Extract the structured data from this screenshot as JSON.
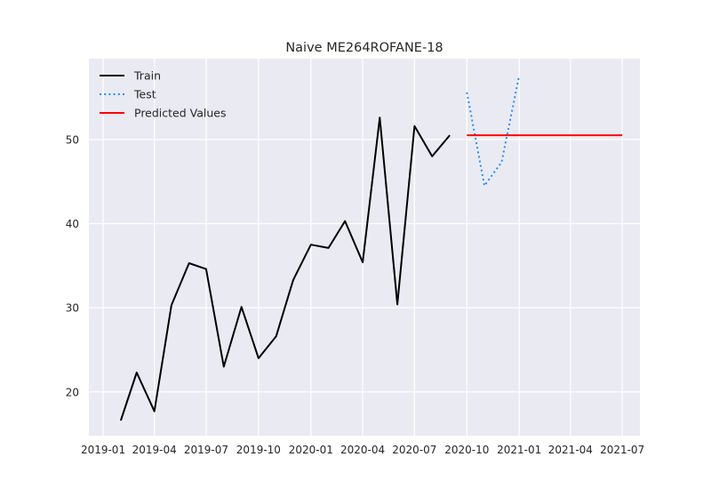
{
  "chart_data": {
    "type": "line",
    "title": "Naive ME264ROFANE-18",
    "xlabel": "",
    "ylabel": "",
    "x_axis_type": "date",
    "xlim": [
      "2018-12-07",
      "2021-08-01"
    ],
    "ylim": [
      14.8,
      59.6
    ],
    "x_ticks": [
      {
        "date": "2019-01-01",
        "label": "2019-01"
      },
      {
        "date": "2019-04-01",
        "label": "2019-04"
      },
      {
        "date": "2019-07-01",
        "label": "2019-07"
      },
      {
        "date": "2019-10-01",
        "label": "2019-10"
      },
      {
        "date": "2020-01-01",
        "label": "2020-01"
      },
      {
        "date": "2020-04-01",
        "label": "2020-04"
      },
      {
        "date": "2020-07-01",
        "label": "2020-07"
      },
      {
        "date": "2020-10-01",
        "label": "2020-10"
      },
      {
        "date": "2021-01-01",
        "label": "2021-01"
      },
      {
        "date": "2021-04-01",
        "label": "2021-04"
      },
      {
        "date": "2021-07-01",
        "label": "2021-07"
      }
    ],
    "y_ticks": [
      {
        "value": 20,
        "label": "20"
      },
      {
        "value": 30,
        "label": "30"
      },
      {
        "value": 40,
        "label": "40"
      },
      {
        "value": 50,
        "label": "50"
      }
    ],
    "grid": true,
    "background": "#eaeaf2",
    "legend_position": "top-left",
    "series": [
      {
        "name": "Train",
        "color": "#000000",
        "style": "solid",
        "points": [
          {
            "x": "2019-02-01",
            "y": 16.6
          },
          {
            "x": "2019-03-01",
            "y": 22.3
          },
          {
            "x": "2019-04-01",
            "y": 17.7
          },
          {
            "x": "2019-05-01",
            "y": 30.3
          },
          {
            "x": "2019-06-01",
            "y": 35.3
          },
          {
            "x": "2019-07-01",
            "y": 34.6
          },
          {
            "x": "2019-08-01",
            "y": 23.0
          },
          {
            "x": "2019-09-01",
            "y": 30.1
          },
          {
            "x": "2019-10-01",
            "y": 24.0
          },
          {
            "x": "2019-11-01",
            "y": 26.6
          },
          {
            "x": "2019-12-01",
            "y": 33.3
          },
          {
            "x": "2020-01-01",
            "y": 37.5
          },
          {
            "x": "2020-02-01",
            "y": 37.1
          },
          {
            "x": "2020-03-01",
            "y": 40.3
          },
          {
            "x": "2020-04-01",
            "y": 35.4
          },
          {
            "x": "2020-05-01",
            "y": 52.6
          },
          {
            "x": "2020-06-01",
            "y": 30.4
          },
          {
            "x": "2020-07-01",
            "y": 51.6
          },
          {
            "x": "2020-08-01",
            "y": 48.0
          },
          {
            "x": "2020-09-01",
            "y": 50.5
          }
        ]
      },
      {
        "name": "Test",
        "color": "#1e90ff",
        "style": "dotted",
        "points": [
          {
            "x": "2020-10-01",
            "y": 55.6
          },
          {
            "x": "2020-11-01",
            "y": 44.5
          },
          {
            "x": "2020-12-01",
            "y": 47.3
          },
          {
            "x": "2021-01-01",
            "y": 57.6
          }
        ]
      },
      {
        "name": "Predicted Values",
        "color": "#ff0000",
        "style": "solid",
        "points": [
          {
            "x": "2020-10-01",
            "y": 50.5
          },
          {
            "x": "2021-07-01",
            "y": 50.5
          }
        ]
      }
    ]
  }
}
